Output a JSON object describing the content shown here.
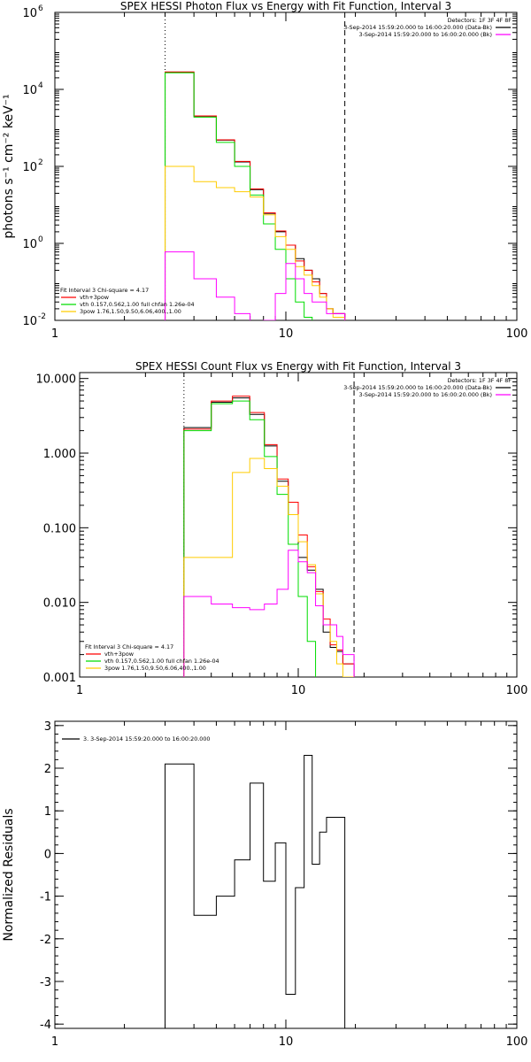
{
  "chart_data": [
    {
      "type": "line",
      "title": "SPEX HESSI Photon Flux vs Energy with Fit Function, Interval 3",
      "ylabel": "photons s⁻¹ cm⁻² keV⁻¹",
      "xscale": "log",
      "yscale": "log",
      "xlim": [
        1,
        100
      ],
      "ylim": [
        0.01,
        1000000
      ],
      "xticks": [
        1,
        10,
        100
      ],
      "xticklabels": [
        "1",
        "10",
        "100"
      ],
      "yticks": [
        0.01,
        1,
        100,
        10000,
        1000000
      ],
      "yticklabels": [
        {
          "b": "10",
          "e": "-2"
        },
        {
          "b": "10",
          "e": "0"
        },
        {
          "b": "10",
          "e": "2"
        },
        {
          "b": "10",
          "e": "4"
        },
        {
          "b": "10",
          "e": "6"
        }
      ],
      "edges": [
        3.0,
        4.0,
        5.0,
        6.0,
        7.0,
        8.0,
        9.0,
        10.0,
        11.0,
        12.0,
        13.0,
        14.0,
        15.0,
        16.0,
        18.0
      ],
      "series": [
        {
          "color": "#000000",
          "values": [
            28000,
            2000,
            480,
            130,
            25,
            6,
            2.0,
            0.9,
            0.4,
            0.2,
            0.12,
            0.05,
            0.02,
            0.015
          ]
        },
        {
          "color": "#ff0000",
          "values": [
            28500,
            2050,
            490,
            135,
            26,
            6.2,
            2.1,
            0.9,
            0.35,
            0.2,
            0.1,
            0.05,
            0.02,
            0.015
          ]
        },
        {
          "color": "#00dd00",
          "values": [
            27000,
            1900,
            420,
            100,
            18,
            3.2,
            0.7,
            0.12,
            0.03,
            0.012
          ]
        },
        {
          "color": "#ffcc00",
          "values": [
            100,
            40,
            28,
            22,
            16,
            5.5,
            1.5,
            0.7,
            0.25,
            0.15,
            0.08,
            0.04,
            0.02,
            0.012
          ]
        },
        {
          "color": "#ff00ff",
          "values": [
            0.6,
            0.12,
            0.04,
            0.015,
            0.008,
            0.01,
            0.05,
            0.3,
            0.12,
            0.05,
            0.03,
            0.03,
            0.015,
            0.015
          ]
        }
      ],
      "vlines": [
        {
          "x": 3.0,
          "style": "dotted"
        },
        {
          "x": 18.0,
          "style": "dashed"
        }
      ],
      "legend_tr": {
        "lines": [
          {
            "text": "Detectors: 1F 3F 4F 8F",
            "color": ""
          },
          {
            "text": "3-Sep-2014 15:59:20.000 to 16:00:20.000 (Data-Bk)",
            "color": "#000000"
          },
          {
            "text": "3-Sep-2014 15:59:20.000 to 16:00:20.000 (Bk)",
            "color": "#ff00ff"
          }
        ]
      },
      "legend_bl": {
        "lines": [
          {
            "text": "Fit Interval 3    Chi-square = 4.17",
            "color": ""
          },
          {
            "text": "vth+3pow",
            "color": "#ff0000"
          },
          {
            "text": "vth 0.157,0.562,1.00  full chfan 1.26e-04",
            "color": "#00dd00"
          },
          {
            "text": "3pow 1.76,1.50,9.50,6.06,400.,1.00",
            "color": "#ffcc00"
          }
        ]
      }
    },
    {
      "type": "line",
      "title": "SPEX HESSI Count Flux vs Energy with Fit Function, Interval 3",
      "ylabel": "",
      "xscale": "log",
      "yscale": "log",
      "xlim": [
        1,
        100
      ],
      "ylim": [
        0.001,
        12
      ],
      "xticks": [
        1,
        10,
        100
      ],
      "xticklabels": [
        "1",
        "10",
        "100"
      ],
      "yticks": [
        0.001,
        0.01,
        0.1,
        1,
        10
      ],
      "yticklabels": [
        "0.001",
        "0.010",
        "0.100",
        "1.000",
        "10.000"
      ],
      "edges": [
        3.0,
        4.0,
        5.0,
        6.0,
        7.0,
        8.0,
        9.0,
        10.0,
        11.0,
        12.0,
        13.0,
        14.0,
        15.0,
        16.0,
        18.0
      ],
      "series": [
        {
          "color": "#000000",
          "values": [
            2.2,
            4.8,
            5.5,
            3.3,
            1.25,
            0.42,
            0.15,
            0.04,
            0.027,
            0.015,
            0.004,
            0.0025,
            0.0022,
            0.0015
          ]
        },
        {
          "color": "#ff0000",
          "values": [
            2.1,
            5.0,
            5.8,
            3.5,
            1.3,
            0.45,
            0.22,
            0.08,
            0.03,
            0.014,
            0.006,
            0.0027,
            0.0023,
            0.0015
          ]
        },
        {
          "color": "#00dd00",
          "values": [
            2.0,
            4.6,
            5.0,
            2.8,
            0.9,
            0.28,
            0.06,
            0.012,
            0.003,
            0.0008
          ]
        },
        {
          "color": "#ffcc00",
          "values": [
            0.04,
            0.04,
            0.55,
            0.85,
            0.62,
            0.36,
            0.15,
            0.065,
            0.032,
            0.013,
            0.005,
            0.003,
            0.0015,
            0.001
          ]
        },
        {
          "color": "#ff00ff",
          "values": [
            0.012,
            0.0095,
            0.0085,
            0.008,
            0.0095,
            0.015,
            0.05,
            0.035,
            0.025,
            0.009,
            0.005,
            0.005,
            0.0035,
            0.002
          ]
        }
      ],
      "vlines": [
        {
          "x": 3.0,
          "style": "dotted"
        },
        {
          "x": 18.0,
          "style": "dashed"
        }
      ],
      "legend_tr": {
        "lines": [
          {
            "text": "Detectors: 1F 3F 4F 8F",
            "color": ""
          },
          {
            "text": "3-Sep-2014 15:59:20.000 to 16:00:20.000 (Data-Bk)",
            "color": "#000000"
          },
          {
            "text": "3-Sep-2014 15:59:20.000 to 16:00:20.000 (Bk)",
            "color": "#ff00ff"
          }
        ]
      },
      "legend_bl": {
        "lines": [
          {
            "text": "Fit Interval 3    Chi-square = 4.17",
            "color": ""
          },
          {
            "text": "vth+3pow",
            "color": "#ff0000"
          },
          {
            "text": "vth 0.157,0.562,1.00  full chfan 1.26e-04",
            "color": "#00dd00"
          },
          {
            "text": "3pow 1.76,1.50,9.50,6.06,400.,1.00",
            "color": "#ffcc00"
          }
        ]
      }
    },
    {
      "type": "line",
      "title": "",
      "ylabel": "Normalized Residuals",
      "xscale": "log",
      "yscale": "linear",
      "xlim": [
        1,
        100
      ],
      "ylim": [
        -4.1,
        3.1
      ],
      "xticks": [
        1,
        10,
        100
      ],
      "xticklabels": [
        "1",
        "10",
        "100"
      ],
      "yticks": [
        -4,
        -3,
        -2,
        -1,
        0,
        1,
        2,
        3
      ],
      "yticklabels": [
        "-4",
        "-3",
        "-2",
        "-1",
        "0",
        "1",
        "2",
        "3"
      ],
      "edges": [
        3.0,
        4.0,
        5.0,
        6.0,
        7.0,
        8.0,
        9.0,
        10.0,
        11.0,
        12.0,
        13.0,
        14.0,
        15.0,
        16.0,
        18.0
      ],
      "series": [
        {
          "color": "#000000",
          "values": [
            2.1,
            -1.45,
            -1.0,
            -0.15,
            1.65,
            -0.65,
            0.25,
            -3.3,
            -0.8,
            2.3,
            -0.25,
            0.5,
            0.85,
            0.85
          ]
        }
      ],
      "vlines": [],
      "legend_tr": {
        "lines": []
      },
      "legend_bl": {
        "lines": []
      },
      "legend_tl": {
        "lines": [
          {
            "text": "3.  3-Sep-2014 15:59:20.000 to 16:00:20.000",
            "color": "#000000"
          }
        ]
      }
    }
  ]
}
